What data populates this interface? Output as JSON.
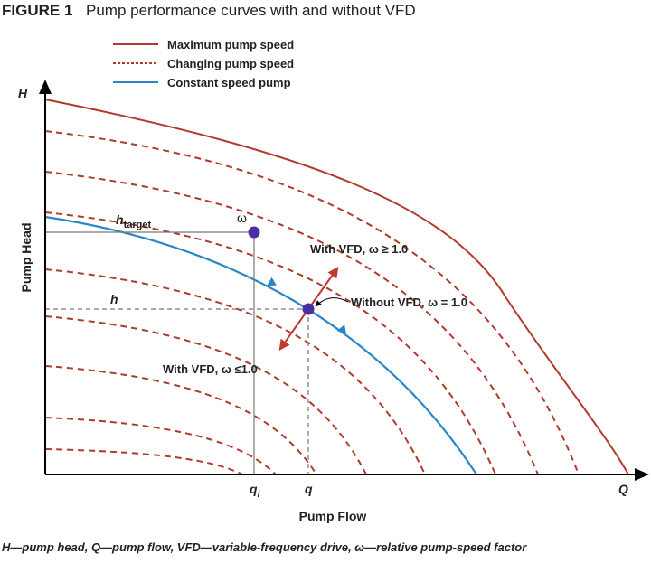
{
  "header": {
    "figure": "FIGURE 1",
    "title": "Pump performance curves with and without VFD"
  },
  "legend": [
    "Maximum pump speed",
    "Changing pump speed",
    "Constant speed pump"
  ],
  "axes": {
    "y_symbol": "H",
    "x_symbol": "Q",
    "y_label": "Pump Head",
    "x_label": "Pump Flow"
  },
  "annotations": {
    "h_target": {
      "main": "h",
      "sub": "target"
    },
    "omega": "ω",
    "with_vfd_up": "With VFD, ω ≥ 1.0",
    "without_vfd": "Without VFD, ω = 1.0",
    "h": "h",
    "with_vfd_down": "With VFD, ω ≤1.0",
    "q_i": {
      "main": "q",
      "sub": "i"
    },
    "q": "q"
  },
  "caption": "H—pump head, Q—pump flow, VFD—variable-frequency drive, ω—relative pump-speed factor"
}
